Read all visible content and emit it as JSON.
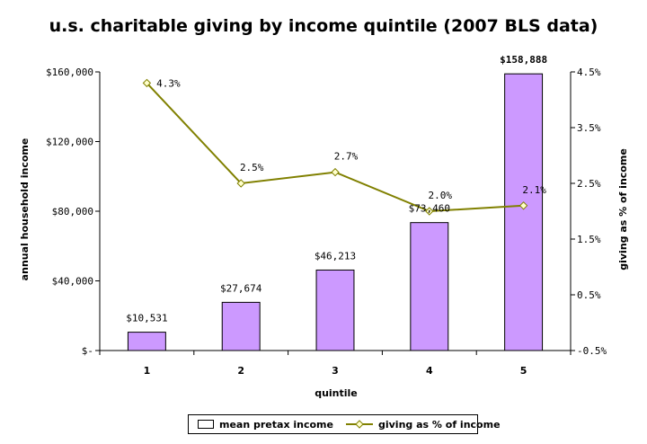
{
  "chart_data": {
    "type": "bar",
    "title": "u.s. charitable giving by income quintile (2007 BLS data)",
    "xlabel": "quintile",
    "ylabel": "annual household income",
    "y2label": "giving as % of income",
    "categories": [
      "1",
      "2",
      "3",
      "4",
      "5"
    ],
    "ylim": [
      0,
      160000
    ],
    "y_ticks": [
      "$160,000",
      "$120,000",
      "$80,000",
      "$40,000",
      "$-"
    ],
    "y2lim": [
      -0.5,
      4.5
    ],
    "y2_ticks": [
      "4.5%",
      "3.5%",
      "2.5%",
      "1.5%",
      "0.5%",
      "-0.5%"
    ],
    "series": [
      {
        "name": "mean pretax income",
        "kind": "bar",
        "axis": "left",
        "values": [
          10531,
          27674,
          46213,
          73460,
          158888
        ],
        "labels": [
          "$10,531",
          "$27,674",
          "$46,213",
          "$73,460",
          "$158,888"
        ],
        "color": "#cc99ff"
      },
      {
        "name": "giving as % of income",
        "kind": "line",
        "axis": "right",
        "values": [
          4.3,
          2.5,
          2.7,
          2.0,
          2.1
        ],
        "labels": [
          "4.3%",
          "2.5%",
          "2.7%",
          "2.0%",
          "2.1%"
        ],
        "color": "#808000"
      }
    ],
    "grid": false,
    "legend_position": "bottom"
  }
}
